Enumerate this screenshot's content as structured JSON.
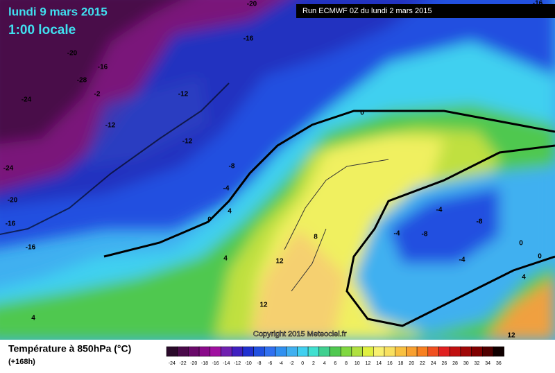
{
  "header": {
    "title_line1": "lundi 9 mars 2015",
    "title_line2": "1:00 locale",
    "run": "Run ECMWF 0Z du lundi 2 mars 2015"
  },
  "map": {
    "contour_labels": [
      "-20",
      "-16",
      "-16",
      "-20",
      "-16",
      "-28",
      "-2",
      "-24",
      "-12",
      "-12",
      "-12",
      "-24",
      "-8",
      "-20",
      "-4",
      "-16",
      "4",
      "0",
      "-16",
      "4",
      "8",
      "12",
      "12",
      "4",
      "0",
      "-4",
      "-8",
      "-4",
      "-8",
      "-4",
      "0",
      "0",
      "4",
      "12"
    ],
    "copyright": "Copyright 2015 Meteociel.fr"
  },
  "legend": {
    "title": "Température à 850hPa (°C)",
    "lead_time": "(+168h)",
    "ticks": [
      -24,
      -22,
      -20,
      -18,
      -16,
      -14,
      -12,
      -10,
      -8,
      -6,
      -4,
      -2,
      0,
      2,
      4,
      6,
      8,
      10,
      12,
      14,
      16,
      18,
      20,
      22,
      24,
      26,
      28,
      30,
      32,
      34,
      36
    ],
    "colors": [
      "#2a0a2a",
      "#4a0a4a",
      "#6a0a6a",
      "#8a0a8a",
      "#a010a0",
      "#7020b0",
      "#4020c0",
      "#2030d0",
      "#2050e0",
      "#3070f0",
      "#3090f0",
      "#40b0f0",
      "#40d0f0",
      "#40e0d0",
      "#40d090",
      "#50c850",
      "#80d840",
      "#b0e040",
      "#e0f040",
      "#f8f070",
      "#f8e060",
      "#f8c040",
      "#f8a030",
      "#f88020",
      "#f05020",
      "#e02020",
      "#c01010",
      "#a00808",
      "#800000",
      "#500000",
      "#100000"
    ]
  }
}
